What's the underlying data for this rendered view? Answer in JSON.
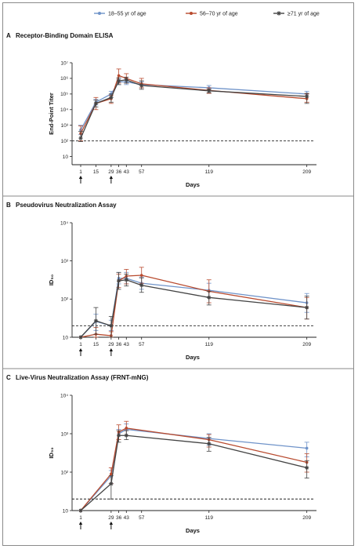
{
  "legend": [
    {
      "label": "18–55 yr of age",
      "color": "#6f93c9",
      "marker": "dot"
    },
    {
      "label": "56–70 yr of age",
      "color": "#b84a2e",
      "marker": "dot"
    },
    {
      "label": "≥71 yr of age",
      "color": "#444444",
      "marker": "star"
    }
  ],
  "chart_data": [
    {
      "type": "line",
      "letter": "A",
      "title": "Receptor-Binding Domain ELISA",
      "xlabel": "Days",
      "ylabel": "End-Point Titer",
      "y_scale": "log",
      "ylim": [
        3,
        10000000
      ],
      "yticks": [
        10,
        100,
        1000,
        10000,
        100000,
        1000000,
        10000000
      ],
      "ytick_labels": [
        "10",
        "10²",
        "10³",
        "10⁴",
        "10⁵",
        "10⁶",
        "10⁷"
      ],
      "xticks": [
        1,
        15,
        29,
        36,
        43,
        57,
        119,
        209
      ],
      "dose_arrows": [
        1,
        29
      ],
      "threshold": 100,
      "series": [
        {
          "name": "18–55 yr of age",
          "x": [
            1,
            15,
            29,
            36,
            43,
            57,
            119,
            209
          ],
          "y": [
            500,
            30000,
            100000,
            600000,
            600000,
            400000,
            250000,
            100000
          ],
          "lo": [
            250,
            20000,
            60000,
            400000,
            400000,
            250000,
            180000,
            70000
          ],
          "hi": [
            1000,
            45000,
            150000,
            900000,
            900000,
            600000,
            350000,
            150000
          ]
        },
        {
          "name": "56–70 yr of age",
          "x": [
            1,
            15,
            29,
            36,
            43,
            57,
            119,
            209
          ],
          "y": [
            300,
            25000,
            50000,
            1500000,
            1000000,
            450000,
            170000,
            50000
          ],
          "lo": [
            100,
            10000,
            25000,
            500000,
            500000,
            250000,
            110000,
            30000
          ],
          "hi": [
            900,
            60000,
            80000,
            4000000,
            2000000,
            1000000,
            250000,
            100000
          ]
        },
        {
          "name": "≥71 yr of age",
          "x": [
            1,
            15,
            29,
            36,
            43,
            57,
            119,
            209
          ],
          "y": [
            150,
            25000,
            60000,
            700000,
            800000,
            350000,
            160000,
            70000
          ],
          "lo": [
            90,
            15000,
            30000,
            400000,
            500000,
            200000,
            120000,
            25000
          ],
          "hi": [
            400,
            40000,
            100000,
            1100000,
            1200000,
            700000,
            210000,
            110000
          ]
        }
      ]
    },
    {
      "type": "line",
      "letter": "B",
      "title": "Pseudovirus Neutralization Assay",
      "xlabel": "Days",
      "ylabel": "ID₅₀",
      "y_scale": "log",
      "ylim": [
        10,
        10000
      ],
      "yticks": [
        10,
        100,
        1000,
        10000
      ],
      "ytick_labels": [
        "10",
        "10²",
        "10³",
        "10⁴"
      ],
      "xticks": [
        1,
        15,
        29,
        36,
        43,
        57,
        119,
        209
      ],
      "dose_arrows": [
        1,
        29
      ],
      "threshold": 20,
      "series": [
        {
          "name": "18–55 yr of age",
          "x": [
            1,
            15,
            29,
            36,
            43,
            57,
            119,
            209
          ],
          "y": [
            10,
            26,
            20,
            350,
            350,
            260,
            170,
            80
          ],
          "lo": [
            10,
            15,
            15,
            250,
            250,
            180,
            110,
            45
          ],
          "hi": [
            10,
            40,
            28,
            500,
            500,
            380,
            260,
            140
          ]
        },
        {
          "name": "56–70 yr of age",
          "x": [
            1,
            15,
            29,
            36,
            43,
            57,
            119,
            209
          ],
          "y": [
            10,
            12,
            11,
            300,
            400,
            420,
            160,
            60
          ],
          "lo": [
            10,
            10,
            10,
            200,
            250,
            260,
            80,
            30
          ],
          "hi": [
            10,
            18,
            14,
            450,
            600,
            680,
            320,
            110
          ]
        },
        {
          "name": "≥71 yr of age",
          "x": [
            1,
            15,
            29,
            36,
            43,
            57,
            119,
            209
          ],
          "y": [
            10,
            27,
            20,
            300,
            320,
            230,
            110,
            60
          ],
          "lo": [
            10,
            12,
            10,
            180,
            220,
            150,
            70,
            30
          ],
          "hi": [
            10,
            60,
            35,
            500,
            450,
            360,
            160,
            120
          ]
        }
      ]
    },
    {
      "type": "line",
      "letter": "C",
      "title": "Live-Virus Neutralization Assay (FRNT-mNG)",
      "xlabel": "Days",
      "ylabel": "ID₅₀",
      "y_scale": "log",
      "ylim": [
        10,
        10000
      ],
      "yticks": [
        10,
        100,
        1000,
        10000
      ],
      "ytick_labels": [
        "10",
        "10²",
        "10³",
        "10⁴"
      ],
      "xticks": [
        1,
        29,
        36,
        43,
        57,
        119,
        209
      ],
      "dose_arrows": [
        1,
        29
      ],
      "threshold": 20,
      "series": [
        {
          "name": "18–55 yr of age",
          "x": [
            1,
            29,
            36,
            43,
            119,
            209
          ],
          "y": [
            10,
            80,
            1000,
            1300,
            750,
            420
          ],
          "lo": [
            10,
            50,
            700,
            900,
            500,
            250
          ],
          "hi": [
            10,
            110,
            1300,
            1800,
            1000,
            600
          ]
        },
        {
          "name": "56–70 yr of age",
          "x": [
            1,
            29,
            36,
            43,
            119,
            209
          ],
          "y": [
            10,
            90,
            1100,
            1400,
            700,
            180
          ],
          "lo": [
            10,
            50,
            700,
            900,
            450,
            100
          ],
          "hi": [
            10,
            130,
            1700,
            2100,
            950,
            300
          ]
        },
        {
          "name": "≥71 yr of age",
          "x": [
            1,
            29,
            36,
            43,
            119,
            209
          ],
          "y": [
            10,
            50,
            900,
            900,
            550,
            130
          ],
          "lo": [
            10,
            20,
            600,
            700,
            350,
            70
          ],
          "hi": [
            10,
            80,
            1200,
            1200,
            800,
            200
          ]
        }
      ]
    }
  ]
}
